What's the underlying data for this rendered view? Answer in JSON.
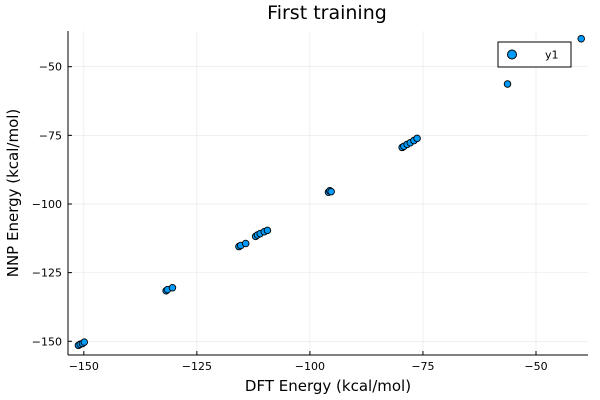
{
  "chart_data": {
    "type": "scatter",
    "title": "First training",
    "xlabel": "DFT Energy (kcal/mol)",
    "ylabel": "NNP Energy (kcal/mol)",
    "xlim": [
      -153.5,
      -38.5
    ],
    "ylim": [
      -155.0,
      -37.0
    ],
    "x_ticks": [
      {
        "value": -150,
        "label": "−150"
      },
      {
        "value": -125,
        "label": "−125"
      },
      {
        "value": -100,
        "label": "−100"
      },
      {
        "value": -75,
        "label": "−75"
      },
      {
        "value": -50,
        "label": "−50"
      }
    ],
    "y_ticks": [
      {
        "value": -150,
        "label": "−150"
      },
      {
        "value": -125,
        "label": "−125"
      },
      {
        "value": -100,
        "label": "−100"
      },
      {
        "value": -75,
        "label": "−75"
      },
      {
        "value": -50,
        "label": "−50"
      }
    ],
    "grid": true,
    "legend_position": "top-right",
    "series": [
      {
        "name": "y1",
        "color": "#009af9",
        "points": [
          {
            "x": -151.2,
            "y": -151.5
          },
          {
            "x": -150.8,
            "y": -151.1
          },
          {
            "x": -150.3,
            "y": -150.8
          },
          {
            "x": -149.9,
            "y": -150.3
          },
          {
            "x": -131.8,
            "y": -131.6
          },
          {
            "x": -131.5,
            "y": -131.2
          },
          {
            "x": -130.4,
            "y": -130.5
          },
          {
            "x": -115.7,
            "y": -115.5
          },
          {
            "x": -115.3,
            "y": -115.1
          },
          {
            "x": -114.2,
            "y": -114.4
          },
          {
            "x": -112.0,
            "y": -111.8
          },
          {
            "x": -111.6,
            "y": -111.3
          },
          {
            "x": -111.0,
            "y": -110.8
          },
          {
            "x": -110.1,
            "y": -110.1
          },
          {
            "x": -109.4,
            "y": -109.6
          },
          {
            "x": -95.9,
            "y": -95.7
          },
          {
            "x": -95.6,
            "y": -95.2
          },
          {
            "x": -95.3,
            "y": -95.5
          },
          {
            "x": -79.6,
            "y": -79.4
          },
          {
            "x": -79.2,
            "y": -79.0
          },
          {
            "x": -78.5,
            "y": -78.3
          },
          {
            "x": -77.8,
            "y": -77.7
          },
          {
            "x": -77.0,
            "y": -76.9
          },
          {
            "x": -76.3,
            "y": -76.1
          },
          {
            "x": -56.3,
            "y": -56.3
          },
          {
            "x": -40.0,
            "y": -39.8
          }
        ]
      }
    ]
  }
}
